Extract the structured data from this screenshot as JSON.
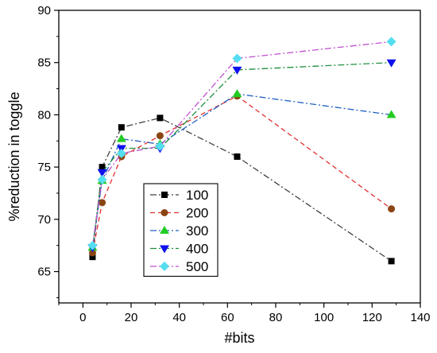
{
  "chart_data": {
    "type": "line",
    "title": "",
    "xlabel": "#bits",
    "ylabel": "%reduction in toggle",
    "xlim": [
      -10,
      140
    ],
    "ylim": [
      62,
      90
    ],
    "xticks": [
      0,
      20,
      40,
      60,
      80,
      100,
      120,
      140
    ],
    "yticks": [
      65,
      70,
      75,
      80,
      85,
      90
    ],
    "grid": false,
    "legend_position": "center-left",
    "x": [
      4,
      8,
      16,
      32,
      64,
      128
    ],
    "series": [
      {
        "name": "100",
        "values": [
          66.4,
          75.0,
          78.8,
          79.7,
          76.0,
          66.0
        ],
        "color": "#000000",
        "marker": "square",
        "dash": "dashdot",
        "line_color": "#404040"
      },
      {
        "name": "200",
        "values": [
          66.8,
          71.6,
          76.0,
          78.0,
          81.8,
          71.0
        ],
        "color": "#8B4513",
        "marker": "circle",
        "dash": "dash",
        "line_color": "#e03030"
      },
      {
        "name": "300",
        "values": [
          67.3,
          73.7,
          77.7,
          77.2,
          82.0,
          80.0
        ],
        "color": "#22cc22",
        "marker": "triangle-up",
        "dash": "dashdot",
        "line_color": "#2060c0"
      },
      {
        "name": "400",
        "values": [
          67.3,
          74.5,
          76.8,
          76.8,
          84.3,
          85.0
        ],
        "color": "#1010ee",
        "marker": "triangle-down",
        "dash": "dashdot",
        "line_color": "#209040"
      },
      {
        "name": "500",
        "values": [
          67.5,
          73.8,
          76.3,
          77.0,
          85.4,
          87.0
        ],
        "color": "#55ddf0",
        "marker": "diamond",
        "dash": "dashdot",
        "line_color": "#c050d0"
      }
    ]
  }
}
